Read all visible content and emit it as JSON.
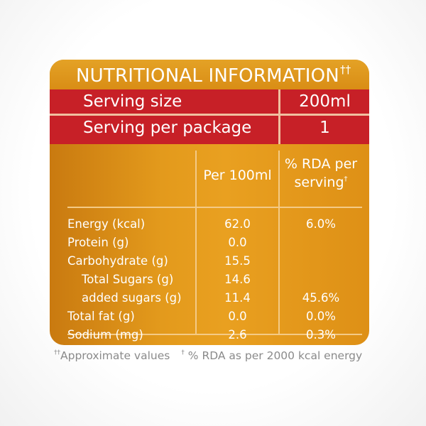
{
  "label": {
    "title": "NUTRITIONAL INFORMATION",
    "title_mark": "††",
    "serving_size": {
      "label": "Serving size",
      "value": "200ml"
    },
    "serving_per_package": {
      "label": "Serving per package",
      "value": "1"
    },
    "columns": {
      "per100": "Per 100ml",
      "rda_line1": "% RDA per",
      "rda_line2": "serving",
      "rda_mark": "†"
    },
    "rows": [
      {
        "label": "Energy (kcal)",
        "per100": "62.0",
        "rda": "6.0%"
      },
      {
        "label": "Protein (g)",
        "per100": "0.0",
        "rda": ""
      },
      {
        "label": "Carbohydrate (g)",
        "per100": "15.5",
        "rda": ""
      },
      {
        "label": "Total Sugars (g)",
        "per100": "14.6",
        "rda": ""
      },
      {
        "label": "added sugars (g)",
        "per100": "11.4",
        "rda": "45.6%"
      },
      {
        "label": "Total fat (g)",
        "per100": "0.0",
        "rda": "0.0%"
      },
      {
        "label": "Sodium (mg)",
        "per100": "2.6",
        "rda": "0.3%"
      }
    ],
    "footnote": {
      "mark1": "††",
      "text1": "Approximate values",
      "mark2": "†",
      "text2": " % RDA as per 2000 kcal energy"
    }
  },
  "colors": {
    "panel_orange": "#e39a1c",
    "band_red": "#c72027",
    "rule_light": "#f4ca86",
    "footnote_gray": "#8a8a8a"
  }
}
